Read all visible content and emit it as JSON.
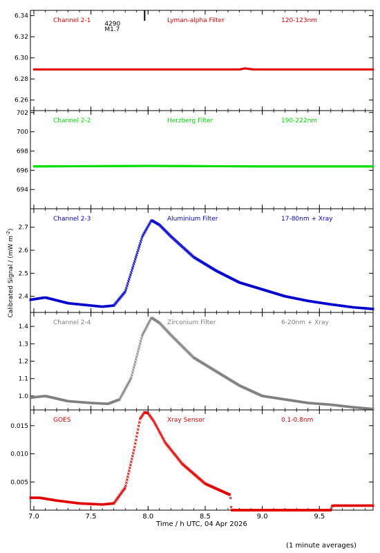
{
  "x_axis": {
    "label": "Time / h UTC, 04 Apr 2026",
    "range": [
      6.97,
      9.97
    ],
    "ticks": [
      7.0,
      7.5,
      8.0,
      8.5,
      9.0,
      9.5
    ],
    "tick_labels": [
      "7.0",
      "7.5",
      "8.0",
      "8.5",
      "9.0",
      "9.5"
    ]
  },
  "y_axis_label": "Calibrated Signal / (mW m",
  "y_axis_label_sup": "-2",
  "y_axis_label_end": ")",
  "footer_note": "(1 minute averages)",
  "flare_annotation": {
    "number": "4290",
    "class": "M1.7",
    "time": 7.97
  },
  "chart_data": [
    {
      "type": "scatter",
      "channel": "Channel 2-1",
      "filter": "Lyman-alpha Filter",
      "band": "120-123nm",
      "color": "#e00000",
      "ylim": [
        6.25,
        6.345
      ],
      "yticks": [
        6.26,
        6.28,
        6.3,
        6.32,
        6.34
      ],
      "ytick_labels": [
        "6.26",
        "6.28",
        "6.30",
        "6.32",
        "6.34"
      ],
      "x": [
        7.0,
        7.25,
        7.5,
        8.0,
        8.5,
        8.8,
        8.85,
        8.92,
        9.0,
        9.5,
        9.97
      ],
      "y": [
        6.289,
        6.289,
        6.289,
        6.289,
        6.289,
        6.289,
        6.29,
        6.289,
        6.289,
        6.289,
        6.289
      ]
    },
    {
      "type": "scatter",
      "channel": "Channel 2-2",
      "filter": "Herzberg Filter",
      "band": "190-222nm",
      "color": "#00dd00",
      "ylim": [
        692.0,
        702.2
      ],
      "yticks": [
        694,
        696,
        698,
        700,
        702
      ],
      "ytick_labels": [
        "694",
        "696",
        "698",
        "700",
        "702"
      ],
      "x": [
        7.0,
        8.0,
        9.0,
        9.97
      ],
      "y": [
        696.4,
        696.45,
        696.4,
        696.4
      ]
    },
    {
      "type": "scatter",
      "channel": "Channel 2-3",
      "filter": "Aluminium Filter",
      "band": "17-80nm + Xray",
      "color": "#0000cc",
      "ylim": [
        2.33,
        2.78
      ],
      "yticks": [
        2.4,
        2.5,
        2.6,
        2.7
      ],
      "ytick_labels": [
        "2.4",
        "2.5",
        "2.6",
        "2.7"
      ],
      "x": [
        6.97,
        7.1,
        7.3,
        7.5,
        7.6,
        7.7,
        7.8,
        7.9,
        7.95,
        8.03,
        8.1,
        8.2,
        8.4,
        8.6,
        8.8,
        9.0,
        9.2,
        9.4,
        9.6,
        9.8,
        9.97
      ],
      "y": [
        2.385,
        2.395,
        2.37,
        2.36,
        2.355,
        2.36,
        2.42,
        2.58,
        2.66,
        2.73,
        2.71,
        2.66,
        2.57,
        2.51,
        2.46,
        2.43,
        2.4,
        2.38,
        2.365,
        2.352,
        2.345
      ]
    },
    {
      "type": "scatter",
      "channel": "Channel 2-4",
      "filter": "Zirconium Filter",
      "band": "6-20nm + Xray",
      "color": "#808080",
      "ylim": [
        0.92,
        1.48
      ],
      "yticks": [
        1.0,
        1.1,
        1.2,
        1.3,
        1.4
      ],
      "ytick_labels": [
        "1.0",
        "1.1",
        "1.2",
        "1.3",
        "1.4"
      ],
      "x": [
        6.97,
        7.1,
        7.3,
        7.5,
        7.65,
        7.75,
        7.85,
        7.95,
        8.03,
        8.1,
        8.2,
        8.4,
        8.6,
        8.8,
        9.0,
        9.2,
        9.4,
        9.6,
        9.8,
        9.97
      ],
      "y": [
        0.99,
        1.0,
        0.97,
        0.96,
        0.955,
        0.98,
        1.1,
        1.35,
        1.45,
        1.42,
        1.35,
        1.22,
        1.14,
        1.06,
        1.0,
        0.98,
        0.96,
        0.95,
        0.935,
        0.925
      ]
    },
    {
      "type": "scatter",
      "channel": "GOES",
      "filter": "Xray Sensor",
      "band": "0.1-0.8nm",
      "color": "#e00000",
      "ylim": [
        0.0,
        0.0178
      ],
      "yticks": [
        0.005,
        0.01,
        0.015
      ],
      "ytick_labels": [
        "0.005",
        "0.010",
        "0.015"
      ],
      "x": [
        6.97,
        7.05,
        7.2,
        7.4,
        7.6,
        7.7,
        7.8,
        7.88,
        7.93,
        7.97,
        8.0,
        8.05,
        8.15,
        8.3,
        8.5,
        8.72,
        8.73,
        8.74,
        9.0,
        9.4,
        9.6,
        9.61,
        9.62,
        9.97
      ],
      "y": [
        0.0022,
        0.0022,
        0.0017,
        0.0012,
        0.001,
        0.0012,
        0.004,
        0.011,
        0.0162,
        0.0174,
        0.0172,
        0.0158,
        0.012,
        0.0082,
        0.0047,
        0.0027,
        0.0,
        0.0,
        0.0,
        0.0,
        0.0,
        0.0007,
        0.0008,
        0.0008
      ]
    }
  ]
}
